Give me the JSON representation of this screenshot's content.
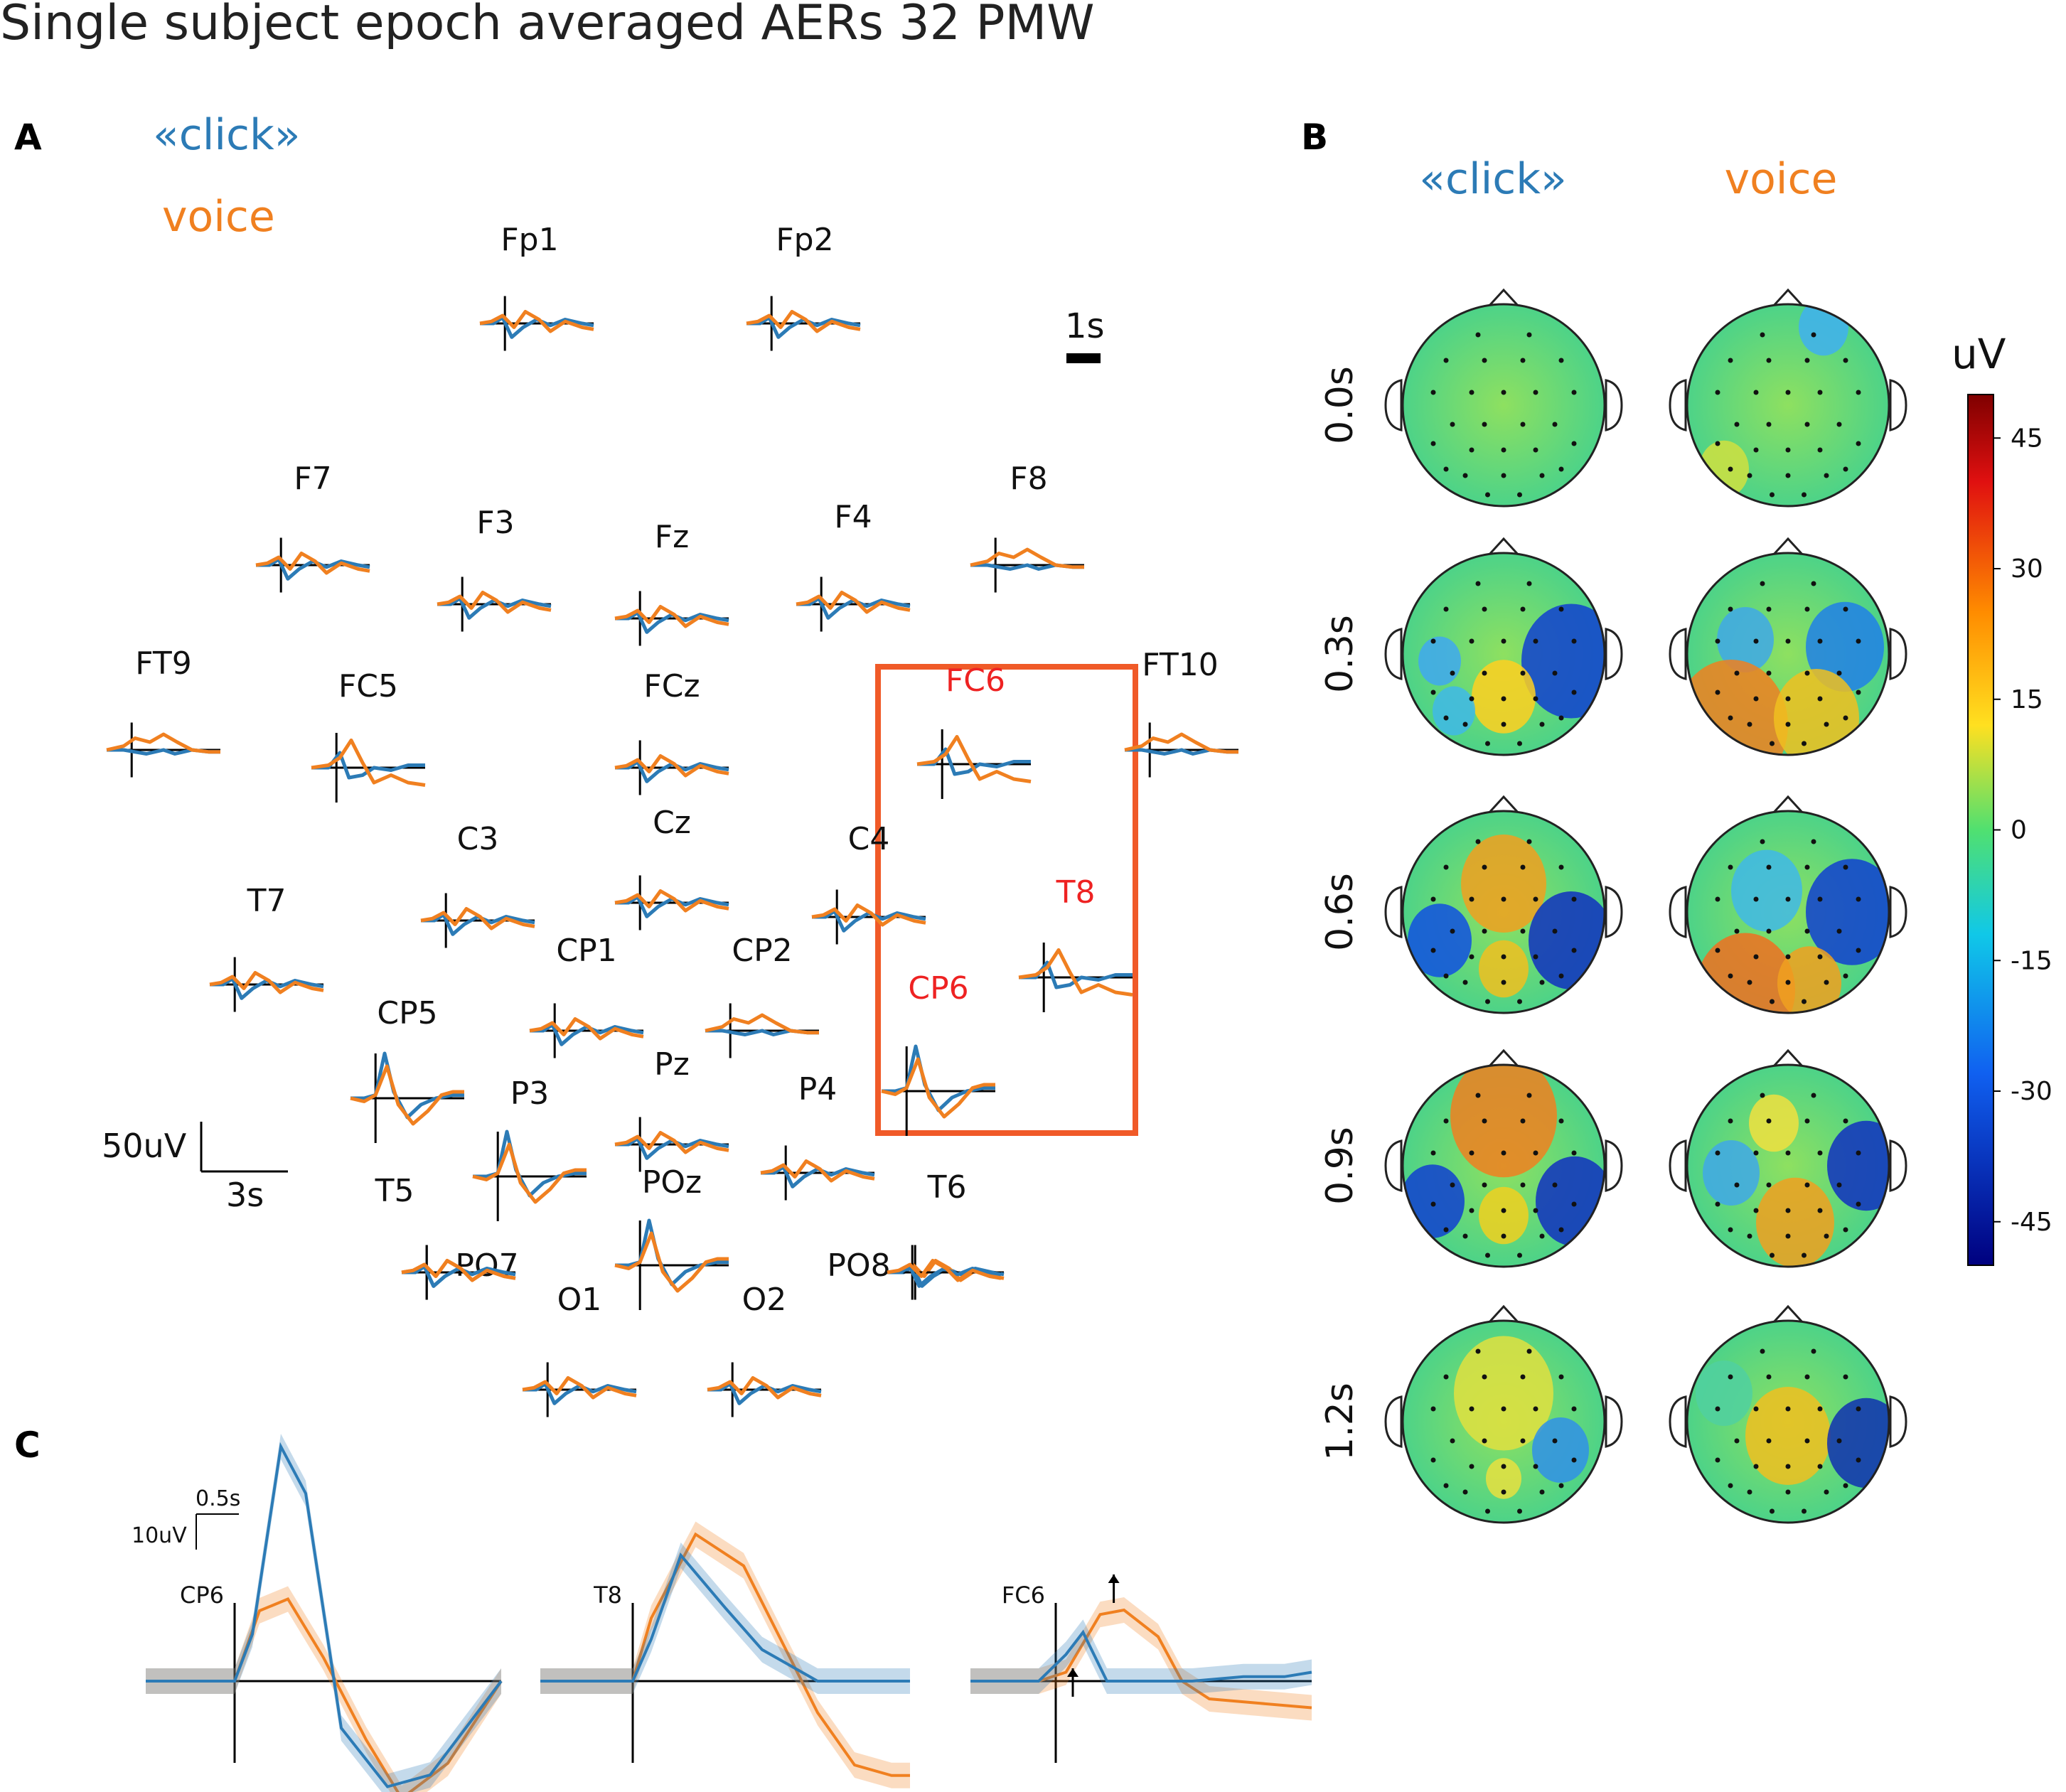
{
  "title": "Single subject epoch averaged AERs 32 PMW",
  "colors": {
    "click": "#2c7bb6",
    "voice": "#f08020",
    "highlight": "#f05a28",
    "highlight_label": "#ee2222",
    "axis": "#000000"
  },
  "panel_a": {
    "letter": "A",
    "legend_click": "«click»",
    "legend_voice": "voice",
    "time_scale_label": "1s",
    "amp_scale_label": "50uV",
    "time_scale_label2": "3s",
    "electrodes": [
      {
        "name": "Fp1",
        "shape": "p1"
      },
      {
        "name": "Fp2",
        "shape": "p1"
      },
      {
        "name": "F7",
        "shape": "p1"
      },
      {
        "name": "F3",
        "shape": "p1"
      },
      {
        "name": "Fz",
        "shape": "p1"
      },
      {
        "name": "F4",
        "shape": "p1"
      },
      {
        "name": "F8",
        "shape": "p2"
      },
      {
        "name": "FT9",
        "shape": "p2"
      },
      {
        "name": "FC5",
        "shape": "p3"
      },
      {
        "name": "FCz",
        "shape": "p1"
      },
      {
        "name": "FC6",
        "shape": "p3",
        "highlight": true
      },
      {
        "name": "FT10",
        "shape": "p2"
      },
      {
        "name": "C3",
        "shape": "p1"
      },
      {
        "name": "Cz",
        "shape": "p1"
      },
      {
        "name": "C4",
        "shape": "p1"
      },
      {
        "name": "T7",
        "shape": "p1"
      },
      {
        "name": "T8",
        "shape": "p3",
        "highlight": true
      },
      {
        "name": "CP1",
        "shape": "p1"
      },
      {
        "name": "CP2",
        "shape": "p2"
      },
      {
        "name": "CP5",
        "shape": "p4"
      },
      {
        "name": "CP6",
        "shape": "p4",
        "highlight": true
      },
      {
        "name": "P3",
        "shape": "p4"
      },
      {
        "name": "Pz",
        "shape": "p1"
      },
      {
        "name": "P4",
        "shape": "p1"
      },
      {
        "name": "T5",
        "shape": "p1"
      },
      {
        "name": "POz",
        "shape": "p4"
      },
      {
        "name": "T6",
        "shape": "p1"
      },
      {
        "name": "PO7",
        "shape": "p1"
      },
      {
        "name": "PO8",
        "shape": "p1"
      },
      {
        "name": "O1",
        "shape": "p1"
      },
      {
        "name": "O2",
        "shape": "p1"
      }
    ]
  },
  "panel_b": {
    "letter": "B",
    "col_click": "«click»",
    "col_voice": "voice",
    "times": [
      "0.0s",
      "0.3s",
      "0.6s",
      "0.9s",
      "1.2s"
    ],
    "colorbar": {
      "unit": "uV",
      "ticks": [
        "45",
        "30",
        "15",
        "0",
        "-15",
        "-30",
        "-45"
      ],
      "range": [
        -50,
        50
      ]
    }
  },
  "panel_c": {
    "letter": "C",
    "time_scale_label": "0.5s",
    "amp_scale_label": "10uV",
    "channels": [
      "CP6",
      "T8",
      "FC6"
    ]
  }
}
